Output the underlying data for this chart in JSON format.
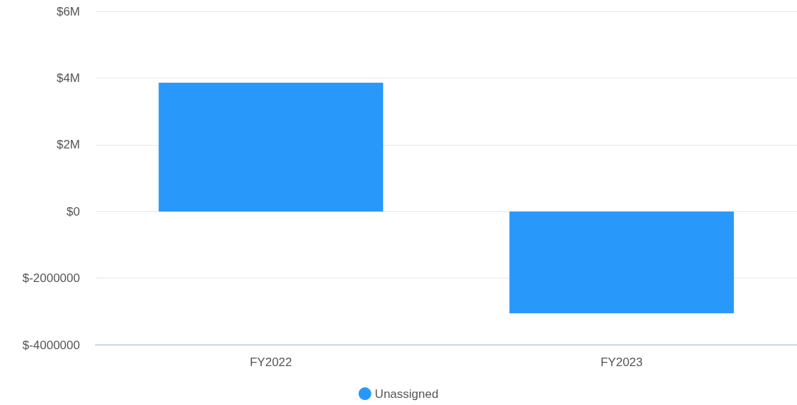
{
  "chart_data": {
    "type": "bar",
    "categories": [
      "FY2022",
      "FY2023"
    ],
    "series": [
      {
        "name": "Unassigned",
        "color": "#2898fa",
        "values": [
          3860000,
          -3050000
        ]
      }
    ],
    "ylim": [
      -4000000,
      6000000
    ],
    "yticks": [
      {
        "value": -4000000,
        "label": "$-4000000"
      },
      {
        "value": -2000000,
        "label": "$-2000000"
      },
      {
        "value": 0,
        "label": "$0"
      },
      {
        "value": 2000000,
        "label": "$2M"
      },
      {
        "value": 4000000,
        "label": "$4M"
      },
      {
        "value": 6000000,
        "label": "$6M"
      }
    ],
    "grid": "y",
    "legend": "bottom"
  }
}
